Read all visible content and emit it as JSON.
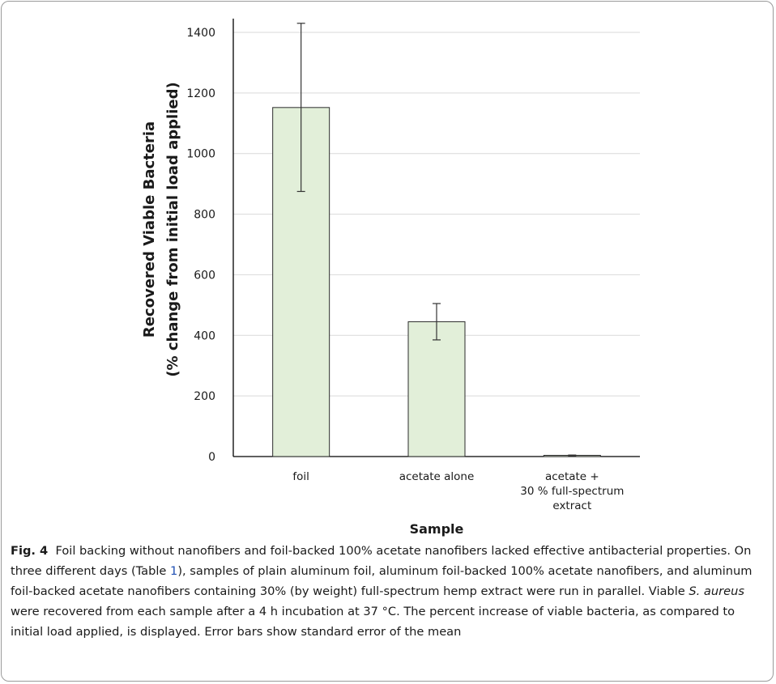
{
  "chart_data": {
    "type": "bar",
    "categories": [
      "foil",
      "acetate alone",
      "acetate +\n30 % full-spectrum\nextract"
    ],
    "values": [
      1152,
      445,
      4
    ],
    "error_bars": [
      {
        "low": 875,
        "high": 1430
      },
      {
        "low": 385,
        "high": 505
      },
      {
        "low": 3,
        "high": 5
      }
    ],
    "ylim": [
      0,
      1400
    ],
    "yticks": [
      0,
      200,
      400,
      600,
      800,
      1000,
      1200,
      1400
    ],
    "xlabel": "Sample",
    "ylabel": "Recovered Viable Bacteria\n(% change from initial load applied)",
    "grid": true,
    "legend": "none",
    "colors": {
      "bar_fill": "#e2efd9",
      "bar_stroke": "#2b2b2b",
      "grid": "#d9d9d9",
      "axis": "#000000",
      "error": "#333333"
    }
  },
  "caption": {
    "label": "Fig. 4",
    "part1": "Foil backing without nanofibers and foil-backed 100% acetate nanofibers lacked effective antibacterial properties. On three different days (Table ",
    "table_ref": "1",
    "part2": "), samples of plain aluminum foil, aluminum foil-backed 100% acetate nanofibers, and aluminum foil-backed acetate nanofibers containing 30% (by weight) full-spectrum hemp extract were run in parallel. Viable ",
    "species": "S. aureus",
    "part3": " were recovered from each sample after a 4 h incubation at 37 °C. The percent increase of viable bacteria, as compared to initial load applied, is displayed. Error bars show standard error of the mean"
  }
}
